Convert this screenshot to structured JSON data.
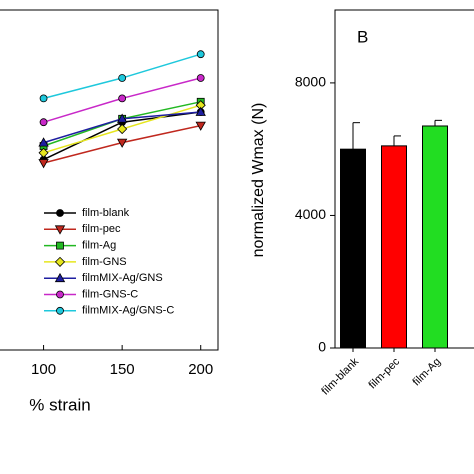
{
  "chart_data": [
    {
      "type": "line",
      "x_label": "% strain",
      "xlim": [
        71,
        211
      ],
      "xticks": [
        100,
        150,
        200
      ],
      "ylim": [
        0,
        100
      ],
      "legend": "lower-right",
      "series": [
        {
          "name": "film-blank",
          "color": "#000000",
          "marker": "circle",
          "x": [
            100,
            150,
            200
          ],
          "values": [
            56,
            67,
            70
          ]
        },
        {
          "name": "film-pec",
          "color": "#c0281e",
          "marker": "triangle-down",
          "x": [
            100,
            150,
            200
          ],
          "values": [
            55,
            61,
            66
          ]
        },
        {
          "name": "film-Ag",
          "color": "#22b822",
          "marker": "square",
          "x": [
            100,
            150,
            200
          ],
          "values": [
            60,
            68,
            73
          ]
        },
        {
          "name": "film-GNS",
          "color": "#e6e61e",
          "marker": "diamond",
          "x": [
            100,
            150,
            200
          ],
          "values": [
            58,
            65,
            72
          ]
        },
        {
          "name": "filmMIX-Ag/GNS",
          "color": "#1e1ea0",
          "marker": "triangle-up",
          "x": [
            100,
            150,
            200
          ],
          "values": [
            61,
            68,
            70
          ]
        },
        {
          "name": "film-GNS-C",
          "color": "#c828c8",
          "marker": "circle",
          "x": [
            100,
            150,
            200
          ],
          "values": [
            67,
            74,
            80
          ]
        },
        {
          "name": "filmMIX-Ag/GNS-C",
          "color": "#1ec8dc",
          "marker": "circle",
          "x": [
            100,
            150,
            200
          ],
          "values": [
            74,
            80,
            87
          ]
        }
      ]
    },
    {
      "type": "bar",
      "panel_label": "B",
      "y_label": "normalized Wmax (N)",
      "categories": [
        "film-blank",
        "film-pec",
        "film-Ag"
      ],
      "values": [
        6000,
        6100,
        6700
      ],
      "errors": [
        800,
        300,
        170
      ],
      "colors": [
        "#000000",
        "#ff0000",
        "#22dd22"
      ],
      "ylim": [
        0,
        10200
      ],
      "yticks": [
        0,
        4000,
        8000
      ]
    }
  ]
}
